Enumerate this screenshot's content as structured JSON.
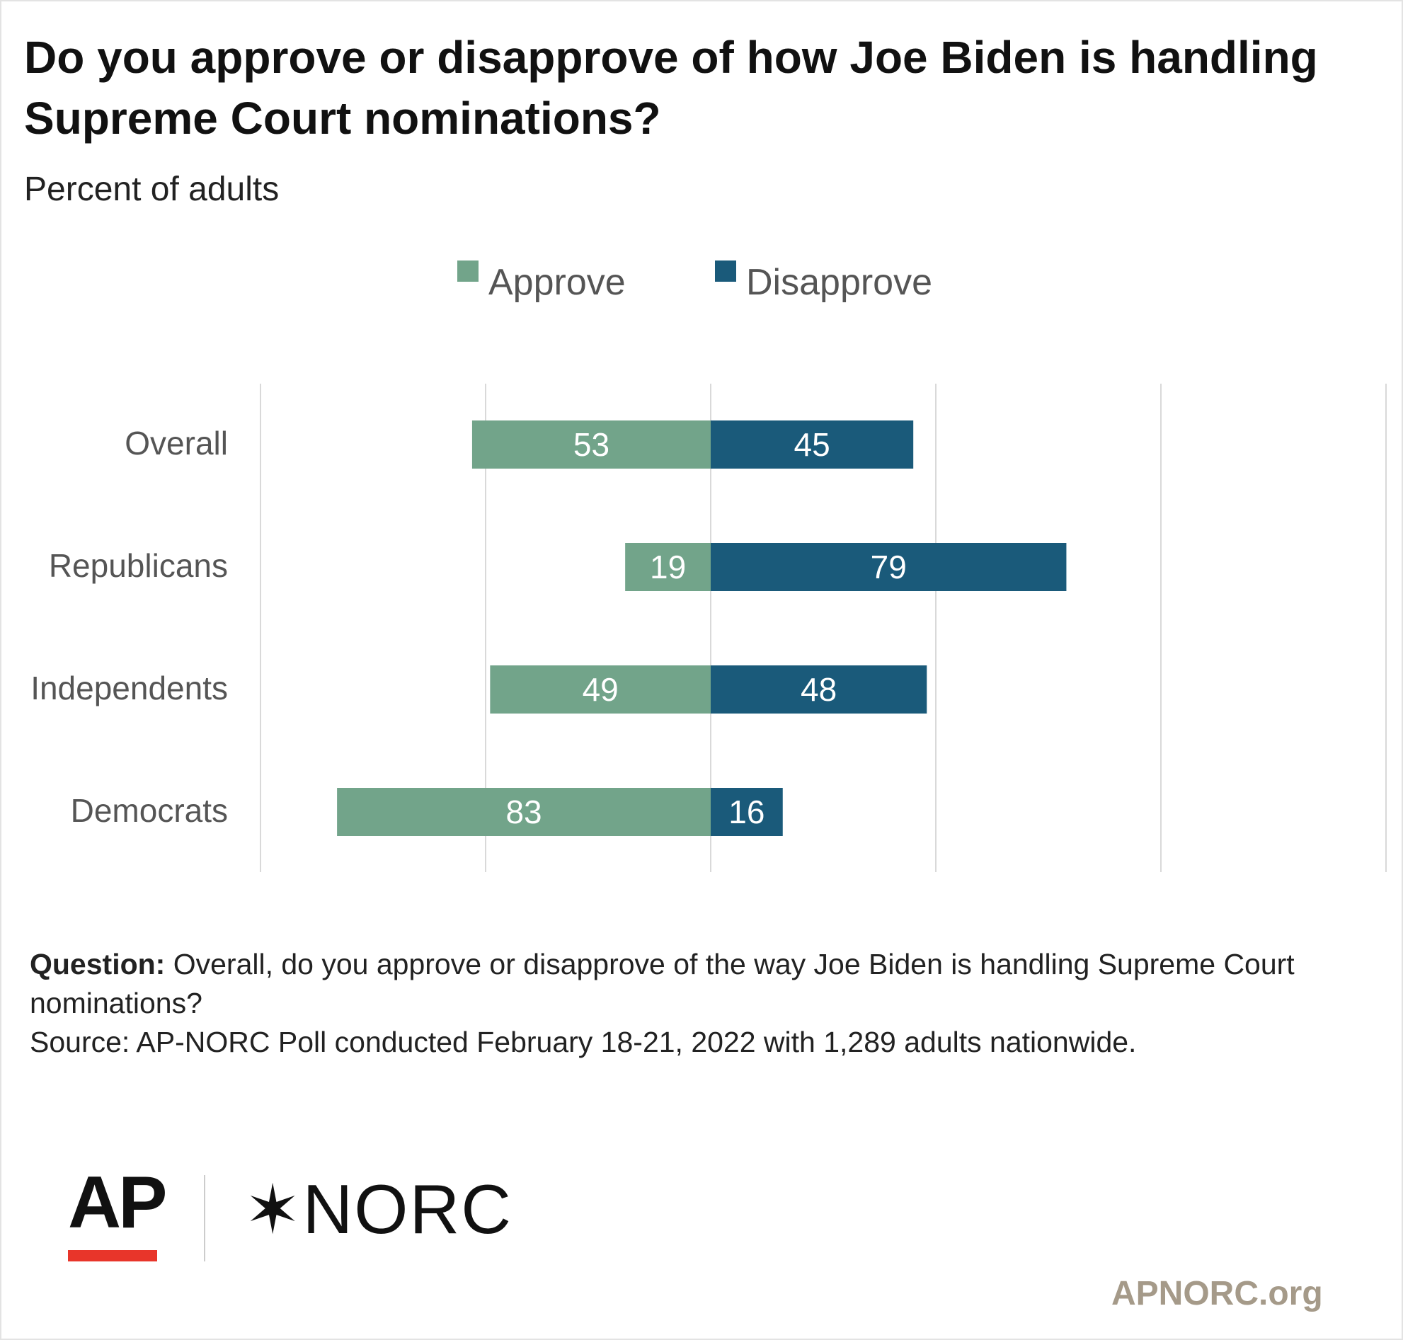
{
  "header": {
    "title": "Do you approve or disapprove of how Joe Biden is handling Supreme Court nominations?",
    "subtitle": "Percent of adults"
  },
  "colors": {
    "approve": "#72a48a",
    "disapprove": "#1a5a7a",
    "grid": "#d9d9d9",
    "brand_red": "#e8352a",
    "site_text": "#a59a89"
  },
  "chart_data": {
    "type": "bar",
    "orientation": "horizontal-diverging",
    "title": "Do you approve or disapprove of how Joe Biden is handling Supreme Court nominations?",
    "subtitle": "Percent of adults",
    "categories": [
      "Overall",
      "Republicans",
      "Independents",
      "Democrats"
    ],
    "series": [
      {
        "name": "Approve",
        "values": [
          53,
          19,
          49,
          83
        ],
        "direction": "left"
      },
      {
        "name": "Disapprove",
        "values": [
          45,
          79,
          48,
          16
        ],
        "direction": "right"
      }
    ],
    "xlim": [
      -100,
      150
    ],
    "gridlines": [
      -100,
      -50,
      0,
      50,
      100,
      150
    ],
    "grid": true,
    "legend": "top-center"
  },
  "footer": {
    "question_label": "Question:",
    "question_text": "Overall, do you approve or disapprove of the way Joe Biden is handling Supreme Court nominations?",
    "source": "Source: AP-NORC Poll conducted February 18-21, 2022 with 1,289 adults nationwide."
  },
  "branding": {
    "ap_logo": "AP",
    "norc_star": "✶",
    "norc_logo": "NORC",
    "site": "APNORC.org"
  }
}
